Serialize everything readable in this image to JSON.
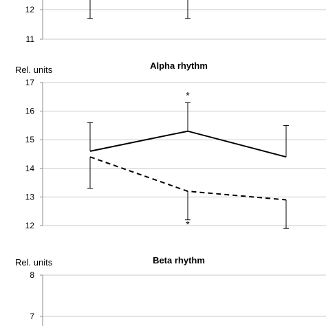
{
  "chart_data": [
    {
      "type": "line",
      "title": "",
      "ylabel": "",
      "ylim": [
        11,
        13
      ],
      "yticks": [
        11,
        12
      ],
      "x": [
        1,
        2,
        3
      ],
      "series": [
        {
          "values": [
            null,
            null,
            null
          ],
          "style": "solid",
          "error_low": [
            11.7,
            11.7,
            null
          ],
          "error_high": [
            13,
            13,
            null
          ]
        }
      ],
      "annotations": [],
      "grid": true
    },
    {
      "type": "line",
      "title": "Alpha rhythm",
      "ylabel": "Rel. units",
      "ylim": [
        12,
        17
      ],
      "yticks": [
        12,
        13,
        14,
        15,
        16,
        17
      ],
      "x": [
        1,
        2,
        3
      ],
      "series": [
        {
          "values": [
            14.6,
            15.3,
            14.4
          ],
          "style": "solid",
          "error_low": [
            null,
            null,
            null
          ],
          "error_high": [
            15.6,
            16.3,
            15.5
          ]
        },
        {
          "values": [
            14.4,
            13.2,
            12.9
          ],
          "style": "dashed",
          "error_low": [
            13.3,
            12.2,
            11.9
          ],
          "error_high": [
            null,
            null,
            null
          ]
        }
      ],
      "annotations": [
        {
          "text": "*",
          "x": 2,
          "y": 16.55
        },
        {
          "text": "*",
          "x": 2,
          "y": 12.05
        }
      ],
      "grid": true
    },
    {
      "type": "line",
      "title": "Beta rhythm",
      "ylabel": "Rel. units",
      "ylim": [
        7,
        8
      ],
      "yticks": [
        7,
        8
      ],
      "x": [
        1,
        2,
        3
      ],
      "series": [],
      "annotations": [],
      "grid": true
    }
  ]
}
